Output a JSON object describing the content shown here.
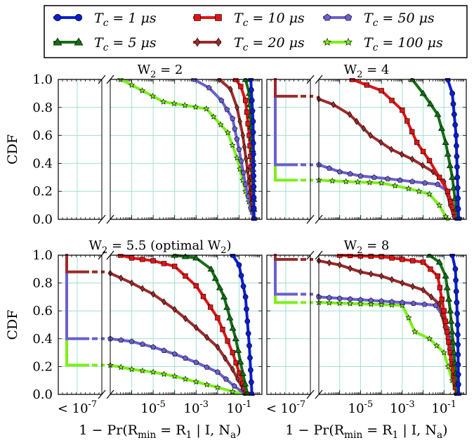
{
  "colors": {
    "s1": "#0a1ed0",
    "s5": "#146e14",
    "s10": "#e01414",
    "s20": "#9b2a2a",
    "s50": "#6b5fd0",
    "s100": "#7cf018",
    "grid": "#9fe0cf"
  },
  "legend": {
    "entries": [
      {
        "key": "s1",
        "label": "T_c = 1 μs",
        "marker": "circle"
      },
      {
        "key": "s5",
        "label": "T_c = 5 μs",
        "marker": "triangle"
      },
      {
        "key": "s10",
        "label": "T_c = 10 μs",
        "marker": "square"
      },
      {
        "key": "s20",
        "label": "T_c = 20 μs",
        "marker": "diamond"
      },
      {
        "key": "s50",
        "label": "T_c = 50 μs",
        "marker": "pentagon"
      },
      {
        "key": "s100",
        "label": "T_c = 100 μs",
        "marker": "star"
      }
    ]
  },
  "xlabel": "1 − Pr(R_min = R_1 | I, N_a)",
  "ylabel": "CDF",
  "chart_data": [
    {
      "type": "line",
      "title": "W_2 = 2",
      "xscale": "log",
      "xticks": [
        "< 10^-7",
        "10^-5",
        "10^-3",
        "10^-1"
      ],
      "yticks": [
        "0.0",
        "0.2",
        "0.4",
        "0.6",
        "0.8",
        "1.0"
      ],
      "ylim": [
        0,
        1
      ],
      "grid": true,
      "series": [
        {
          "key": "s100",
          "zero_fraction": 0,
          "points": [
            [
              3e-07,
              1.0
            ],
            [
              1e-06,
              0.96
            ],
            [
              3e-05,
              0.84
            ],
            [
              0.003,
              0.79
            ],
            [
              0.03,
              0.62
            ],
            [
              0.08,
              0.44
            ],
            [
              0.2,
              0.2
            ],
            [
              0.4,
              0.05
            ],
            [
              0.5,
              0.0
            ]
          ]
        },
        {
          "key": "s50",
          "zero_fraction": 0,
          "points": [
            [
              0.0008,
              1.0
            ],
            [
              0.004,
              0.94
            ],
            [
              0.015,
              0.85
            ],
            [
              0.05,
              0.72
            ],
            [
              0.1,
              0.5
            ],
            [
              0.2,
              0.25
            ],
            [
              0.35,
              0.08
            ],
            [
              0.5,
              0.0
            ]
          ]
        },
        {
          "key": "s20",
          "zero_fraction": 0,
          "points": [
            [
              0.012,
              1.0
            ],
            [
              0.04,
              0.93
            ],
            [
              0.08,
              0.8
            ],
            [
              0.15,
              0.6
            ],
            [
              0.25,
              0.35
            ],
            [
              0.38,
              0.12
            ],
            [
              0.5,
              0.0
            ]
          ]
        },
        {
          "key": "s10",
          "zero_fraction": 0,
          "points": [
            [
              0.07,
              1.0
            ],
            [
              0.12,
              0.95
            ],
            [
              0.2,
              0.85
            ],
            [
              0.3,
              0.6
            ],
            [
              0.4,
              0.3
            ],
            [
              0.5,
              0.0
            ]
          ]
        },
        {
          "key": "s5",
          "zero_fraction": 0,
          "points": [
            [
              0.2,
              1.0
            ],
            [
              0.3,
              0.9
            ],
            [
              0.42,
              0.5
            ],
            [
              0.5,
              0.0
            ]
          ]
        },
        {
          "key": "s1",
          "zero_fraction": 0,
          "points": [
            [
              0.35,
              1.0
            ],
            [
              0.45,
              0.7
            ],
            [
              0.5,
              0.0
            ]
          ]
        }
      ]
    },
    {
      "type": "line",
      "title": "W_2 = 4",
      "xscale": "log",
      "xticks": [
        "< 10^-7",
        "10^-5",
        "10^-3",
        "10^-1"
      ],
      "yticks": [
        "0.0",
        "0.2",
        "0.4",
        "0.6",
        "0.8",
        "1.0"
      ],
      "ylim": [
        0,
        1
      ],
      "grid": true,
      "series": [
        {
          "key": "s100",
          "zero_fraction": 0.28,
          "points": [
            [
              1e-07,
              0.28
            ],
            [
              2e-06,
              0.27
            ],
            [
              0.0001,
              0.26
            ],
            [
              0.002,
              0.22
            ],
            [
              0.02,
              0.18
            ],
            [
              0.06,
              0.1
            ],
            [
              0.12,
              0.02
            ],
            [
              0.15,
              0.0
            ]
          ]
        },
        {
          "key": "s50",
          "zero_fraction": 0.39,
          "points": [
            [
              1e-07,
              0.39
            ],
            [
              1e-06,
              0.34
            ],
            [
              1e-05,
              0.31
            ],
            [
              0.0002,
              0.29
            ],
            [
              0.003,
              0.27
            ],
            [
              0.05,
              0.25
            ],
            [
              0.15,
              0.2
            ],
            [
              0.3,
              0.08
            ],
            [
              0.5,
              0.0
            ]
          ]
        },
        {
          "key": "s20",
          "zero_fraction": 0.88,
          "points": [
            [
              1e-07,
              0.86
            ],
            [
              5e-07,
              0.82
            ],
            [
              3e-06,
              0.75
            ],
            [
              3e-05,
              0.6
            ],
            [
              0.0003,
              0.5
            ],
            [
              0.003,
              0.43
            ],
            [
              0.03,
              0.34
            ],
            [
              0.1,
              0.27
            ],
            [
              0.2,
              0.1
            ],
            [
              0.3,
              0.02
            ],
            [
              0.4,
              0.0
            ]
          ]
        },
        {
          "key": "s10",
          "zero_fraction": 0,
          "points": [
            [
              4e-06,
              1.0
            ],
            [
              2e-05,
              0.96
            ],
            [
              0.0001,
              0.92
            ],
            [
              0.001,
              0.78
            ],
            [
              0.005,
              0.55
            ],
            [
              0.02,
              0.42
            ],
            [
              0.06,
              0.3
            ],
            [
              0.15,
              0.2
            ],
            [
              0.3,
              0.05
            ],
            [
              0.5,
              0.0
            ]
          ]
        },
        {
          "key": "s5",
          "zero_fraction": 0,
          "points": [
            [
              0.003,
              1.0
            ],
            [
              0.01,
              0.9
            ],
            [
              0.05,
              0.75
            ],
            [
              0.12,
              0.55
            ],
            [
              0.25,
              0.3
            ],
            [
              0.45,
              0.0
            ]
          ]
        },
        {
          "key": "s1",
          "zero_fraction": 0,
          "points": [
            [
              0.15,
              1.0
            ],
            [
              0.25,
              0.9
            ],
            [
              0.38,
              0.6
            ],
            [
              0.5,
              0.0
            ]
          ]
        }
      ]
    },
    {
      "type": "line",
      "title": "W_2 = 5.5 (optimal W_2)",
      "xscale": "log",
      "xticks": [
        "< 10^-7",
        "10^-5",
        "10^-3",
        "10^-1"
      ],
      "yticks": [
        "0.0",
        "0.2",
        "0.4",
        "0.6",
        "0.8",
        "1.0"
      ],
      "ylim": [
        0,
        1
      ],
      "grid": true,
      "series": [
        {
          "key": "s100",
          "zero_fraction": 0.21,
          "points": [
            [
              1e-07,
              0.21
            ],
            [
              1e-06,
              0.18
            ],
            [
              1e-05,
              0.16
            ],
            [
              0.0001,
              0.13
            ],
            [
              0.001,
              0.09
            ],
            [
              0.01,
              0.05
            ],
            [
              0.05,
              0.02
            ],
            [
              0.2,
              0.0
            ]
          ]
        },
        {
          "key": "s50",
          "zero_fraction": 0.4,
          "points": [
            [
              1e-07,
              0.4
            ],
            [
              1e-06,
              0.38
            ],
            [
              1e-05,
              0.34
            ],
            [
              0.0001,
              0.29
            ],
            [
              0.001,
              0.23
            ],
            [
              0.01,
              0.16
            ],
            [
              0.06,
              0.06
            ],
            [
              0.2,
              0.0
            ]
          ]
        },
        {
          "key": "s20",
          "zero_fraction": 0.88,
          "points": [
            [
              1e-07,
              0.87
            ],
            [
              1e-06,
              0.8
            ],
            [
              1e-05,
              0.72
            ],
            [
              0.0001,
              0.61
            ],
            [
              0.001,
              0.48
            ],
            [
              0.01,
              0.34
            ],
            [
              0.05,
              0.18
            ],
            [
              0.15,
              0.04
            ],
            [
              0.2,
              0.0
            ]
          ]
        },
        {
          "key": "s10",
          "zero_fraction": 0,
          "points": [
            [
              3e-07,
              1.0
            ],
            [
              1e-06,
              0.98
            ],
            [
              1e-05,
              0.96
            ],
            [
              0.0001,
              0.92
            ],
            [
              0.001,
              0.78
            ],
            [
              0.01,
              0.55
            ],
            [
              0.05,
              0.3
            ],
            [
              0.15,
              0.08
            ],
            [
              0.25,
              0.0
            ]
          ]
        },
        {
          "key": "s5",
          "zero_fraction": 0,
          "points": [
            [
              0.0001,
              1.0
            ],
            [
              0.001,
              0.98
            ],
            [
              0.005,
              0.9
            ],
            [
              0.02,
              0.7
            ],
            [
              0.07,
              0.4
            ],
            [
              0.15,
              0.15
            ],
            [
              0.25,
              0.0
            ]
          ]
        },
        {
          "key": "s1",
          "zero_fraction": 0,
          "points": [
            [
              0.05,
              1.0
            ],
            [
              0.1,
              0.93
            ],
            [
              0.2,
              0.7
            ],
            [
              0.3,
              0.35
            ],
            [
              0.4,
              0.0
            ]
          ]
        }
      ]
    },
    {
      "type": "line",
      "title": "W_2 = 8",
      "xscale": "log",
      "xticks": [
        "< 10^-7",
        "10^-5",
        "10^-3",
        "10^-1"
      ],
      "yticks": [
        "0.0",
        "0.2",
        "0.4",
        "0.6",
        "0.8",
        "1.0"
      ],
      "ylim": [
        0,
        1
      ],
      "grid": true,
      "series": [
        {
          "key": "s100",
          "zero_fraction": 0.66,
          "points": [
            [
              1e-07,
              0.66
            ],
            [
              1e-05,
              0.65
            ],
            [
              0.001,
              0.64
            ],
            [
              0.002,
              0.55
            ],
            [
              0.004,
              0.45
            ],
            [
              0.02,
              0.4
            ],
            [
              0.1,
              0.3
            ],
            [
              0.25,
              0.1
            ],
            [
              0.4,
              0.0
            ]
          ]
        },
        {
          "key": "s50",
          "zero_fraction": 0.72,
          "points": [
            [
              1e-07,
              0.7
            ],
            [
              1e-06,
              0.69
            ],
            [
              1e-05,
              0.68
            ],
            [
              0.001,
              0.66
            ],
            [
              0.04,
              0.64
            ],
            [
              0.1,
              0.55
            ],
            [
              0.2,
              0.4
            ],
            [
              0.3,
              0.15
            ],
            [
              0.4,
              0.0
            ]
          ]
        },
        {
          "key": "s20",
          "zero_fraction": 0.97,
          "points": [
            [
              1e-07,
              0.96
            ],
            [
              1e-06,
              0.93
            ],
            [
              1e-05,
              0.88
            ],
            [
              0.0001,
              0.85
            ],
            [
              0.001,
              0.8
            ],
            [
              0.01,
              0.75
            ],
            [
              0.06,
              0.65
            ],
            [
              0.15,
              0.4
            ],
            [
              0.3,
              0.1
            ],
            [
              0.4,
              0.0
            ]
          ]
        },
        {
          "key": "s10",
          "zero_fraction": 0,
          "points": [
            [
              1e-06,
              1.0
            ],
            [
              0.0001,
              0.99
            ],
            [
              0.001,
              0.97
            ],
            [
              0.01,
              0.95
            ],
            [
              0.05,
              0.85
            ],
            [
              0.1,
              0.6
            ],
            [
              0.2,
              0.3
            ],
            [
              0.35,
              0.05
            ],
            [
              0.45,
              0.0
            ]
          ]
        },
        {
          "key": "s5",
          "zero_fraction": 0,
          "points": [
            [
              0.02,
              1.0
            ],
            [
              0.06,
              0.95
            ],
            [
              0.12,
              0.85
            ],
            [
              0.2,
              0.6
            ],
            [
              0.3,
              0.3
            ],
            [
              0.45,
              0.0
            ]
          ]
        },
        {
          "key": "s1",
          "zero_fraction": 0,
          "points": [
            [
              0.25,
              1.0
            ],
            [
              0.35,
              0.9
            ],
            [
              0.45,
              0.5
            ],
            [
              0.5,
              0.0
            ]
          ]
        }
      ]
    }
  ]
}
